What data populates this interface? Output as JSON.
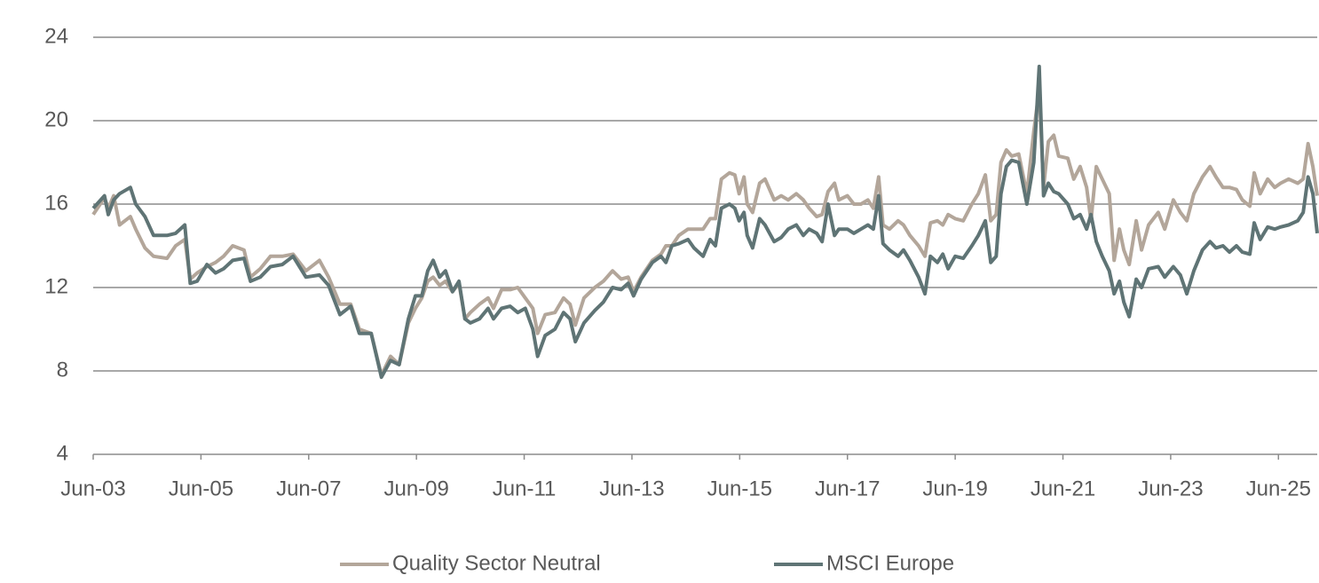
{
  "chart_data": {
    "type": "line",
    "x": [
      2003.42,
      2003.63,
      2003.7,
      2003.8,
      2003.91,
      2004.11,
      2004.21,
      2004.38,
      2004.54,
      2004.79,
      2004.95,
      2005.12,
      2005.22,
      2005.35,
      2005.53,
      2005.69,
      2005.84,
      2006.01,
      2006.22,
      2006.34,
      2006.52,
      2006.71,
      2006.93,
      2007.13,
      2007.37,
      2007.62,
      2007.79,
      2008.0,
      2008.2,
      2008.36,
      2008.58,
      2008.77,
      2008.94,
      2009.1,
      2009.27,
      2009.4,
      2009.52,
      2009.63,
      2009.73,
      2009.85,
      2009.96,
      2010.09,
      2010.21,
      2010.32,
      2010.42,
      2010.59,
      2010.75,
      2010.85,
      2011.0,
      2011.16,
      2011.3,
      2011.44,
      2011.58,
      2011.67,
      2011.81,
      2011.99,
      2012.15,
      2012.27,
      2012.37,
      2012.53,
      2012.73,
      2012.89,
      2013.06,
      2013.22,
      2013.35,
      2013.45,
      2013.59,
      2013.8,
      2013.96,
      2014.05,
      2014.16,
      2014.29,
      2014.46,
      2014.57,
      2014.74,
      2014.87,
      2014.97,
      2015.08,
      2015.23,
      2015.33,
      2015.41,
      2015.5,
      2015.56,
      2015.66,
      2015.79,
      2015.89,
      2016.06,
      2016.19,
      2016.32,
      2016.47,
      2016.6,
      2016.71,
      2016.85,
      2016.95,
      2017.06,
      2017.18,
      2017.26,
      2017.42,
      2017.54,
      2017.67,
      2017.8,
      2017.9,
      2018.0,
      2018.08,
      2018.2,
      2018.36,
      2018.46,
      2018.58,
      2018.74,
      2018.86,
      2018.96,
      2019.09,
      2019.19,
      2019.29,
      2019.42,
      2019.57,
      2019.73,
      2019.85,
      2019.98,
      2020.08,
      2020.18,
      2020.27,
      2020.37,
      2020.47,
      2020.6,
      2020.75,
      2020.88,
      2020.98,
      2021.06,
      2021.15,
      2021.25,
      2021.34,
      2021.51,
      2021.62,
      2021.74,
      2021.86,
      2021.94,
      2022.04,
      2022.15,
      2022.28,
      2022.37,
      2022.47,
      2022.55,
      2022.65,
      2022.78,
      2022.88,
      2023.01,
      2023.19,
      2023.31,
      2023.47,
      2023.6,
      2023.72,
      2023.85,
      2024.01,
      2024.15,
      2024.26,
      2024.39,
      2024.51,
      2024.64,
      2024.75,
      2024.89,
      2024.97,
      2025.08,
      2025.22,
      2025.35,
      2025.46,
      2025.61,
      2025.78,
      2025.88,
      2025.97,
      2026.06,
      2026.14
    ],
    "series": [
      {
        "name": "Quality Sector Neutral",
        "color": "#b3a69a",
        "values": [
          15.5,
          16.3,
          15.8,
          16.4,
          15.0,
          15.4,
          14.8,
          13.9,
          13.5,
          13.4,
          14.0,
          14.3,
          12.4,
          12.7,
          13.0,
          13.2,
          13.5,
          14.0,
          13.8,
          12.5,
          12.9,
          13.5,
          13.5,
          13.6,
          12.8,
          13.3,
          12.5,
          11.2,
          11.2,
          10.0,
          9.8,
          7.8,
          8.7,
          8.3,
          10.3,
          11.0,
          11.5,
          12.3,
          12.5,
          12.1,
          12.3,
          11.8,
          12.2,
          10.5,
          10.8,
          11.2,
          11.5,
          11.0,
          11.9,
          11.9,
          12.0,
          11.5,
          11.0,
          9.8,
          10.7,
          10.8,
          11.5,
          11.2,
          10.2,
          11.5,
          12.0,
          12.3,
          12.8,
          12.4,
          12.5,
          11.8,
          12.5,
          13.3,
          13.6,
          14.0,
          14.0,
          14.5,
          14.8,
          14.8,
          14.8,
          15.3,
          15.3,
          17.2,
          17.5,
          17.4,
          16.5,
          17.3,
          16.0,
          15.6,
          17.0,
          17.2,
          16.2,
          16.4,
          16.2,
          16.5,
          16.2,
          15.8,
          15.4,
          15.5,
          16.6,
          17.0,
          16.2,
          16.4,
          16.0,
          16.0,
          16.2,
          15.8,
          17.3,
          15.0,
          14.8,
          15.2,
          15.0,
          14.5,
          14.0,
          13.5,
          15.1,
          15.2,
          15.0,
          15.5,
          15.3,
          15.2,
          16.0,
          16.5,
          17.4,
          15.2,
          15.5,
          18.0,
          18.6,
          18.3,
          18.4,
          16.5,
          19.5,
          21.5,
          16.8,
          19.0,
          19.3,
          18.3,
          18.2,
          17.2,
          17.8,
          16.8,
          15.2,
          17.8,
          17.2,
          16.5,
          13.3,
          14.8,
          13.8,
          13.1,
          15.2,
          13.8,
          15.0,
          15.6,
          14.8,
          16.2,
          15.6,
          15.2,
          16.5,
          17.3,
          17.8,
          17.3,
          16.8,
          16.8,
          16.7,
          16.2,
          15.9,
          17.5,
          16.5,
          17.2,
          16.8,
          17.0,
          17.2,
          17.0,
          17.2,
          18.9,
          17.8,
          16.4
        ]
      },
      {
        "name": "MSCI Europe",
        "color": "#5f7475",
        "values": [
          15.8,
          16.4,
          15.5,
          16.2,
          16.5,
          16.8,
          16.0,
          15.4,
          14.5,
          14.5,
          14.6,
          15.0,
          12.2,
          12.3,
          13.1,
          12.7,
          12.9,
          13.3,
          13.4,
          12.3,
          12.5,
          13.0,
          13.1,
          13.5,
          12.5,
          12.6,
          12.1,
          10.7,
          11.1,
          9.8,
          9.8,
          7.7,
          8.5,
          8.3,
          10.5,
          11.6,
          11.6,
          12.8,
          13.3,
          12.5,
          12.8,
          11.8,
          12.3,
          10.5,
          10.3,
          10.5,
          11.0,
          10.5,
          11.0,
          11.1,
          10.8,
          11.0,
          10.0,
          8.7,
          9.7,
          10.0,
          10.8,
          10.5,
          9.4,
          10.3,
          10.9,
          11.3,
          12.0,
          11.9,
          12.2,
          11.6,
          12.4,
          13.2,
          13.5,
          13.2,
          14.0,
          14.1,
          14.3,
          13.9,
          13.5,
          14.3,
          14.0,
          15.8,
          16.0,
          15.8,
          15.2,
          15.6,
          14.5,
          13.9,
          15.3,
          15.0,
          14.2,
          14.4,
          14.8,
          15.0,
          14.5,
          14.8,
          14.6,
          14.2,
          16.0,
          14.5,
          14.8,
          14.8,
          14.6,
          14.8,
          15.0,
          14.8,
          16.4,
          14.1,
          13.8,
          13.5,
          13.8,
          13.3,
          12.5,
          11.7,
          13.5,
          13.2,
          13.6,
          12.9,
          13.5,
          13.4,
          14.0,
          14.5,
          15.2,
          13.2,
          13.5,
          16.5,
          17.8,
          18.1,
          18.0,
          16.0,
          18.0,
          22.6,
          16.4,
          17.0,
          16.6,
          16.5,
          16.0,
          15.3,
          15.5,
          14.8,
          15.5,
          14.2,
          13.5,
          12.8,
          11.7,
          12.3,
          11.3,
          10.6,
          12.4,
          12.0,
          12.9,
          13.0,
          12.5,
          13.0,
          12.6,
          11.7,
          12.8,
          13.8,
          14.2,
          13.9,
          14.0,
          13.7,
          14.0,
          13.7,
          13.6,
          15.1,
          14.3,
          14.9,
          14.8,
          14.9,
          15.0,
          15.2,
          15.6,
          17.3,
          16.5,
          14.6
        ]
      }
    ],
    "xlim": [
      2003.42,
      2026.14
    ],
    "xticks": [
      {
        "value": 2003.42,
        "label": "Jun-03"
      },
      {
        "value": 2005.42,
        "label": "Jun-05"
      },
      {
        "value": 2007.42,
        "label": "Jun-07"
      },
      {
        "value": 2009.42,
        "label": "Jun-09"
      },
      {
        "value": 2011.42,
        "label": "Jun-11"
      },
      {
        "value": 2013.42,
        "label": "Jun-13"
      },
      {
        "value": 2015.42,
        "label": "Jun-15"
      },
      {
        "value": 2017.42,
        "label": "Jun-17"
      },
      {
        "value": 2019.42,
        "label": "Jun-19"
      },
      {
        "value": 2021.42,
        "label": "Jun-21"
      },
      {
        "value": 2023.42,
        "label": "Jun-23"
      },
      {
        "value": 2025.42,
        "label": "Jun-25"
      }
    ],
    "ylim": [
      4,
      24
    ],
    "yticks": [
      4,
      8,
      12,
      16,
      20,
      24
    ],
    "grid": true,
    "legend": "bottom"
  }
}
